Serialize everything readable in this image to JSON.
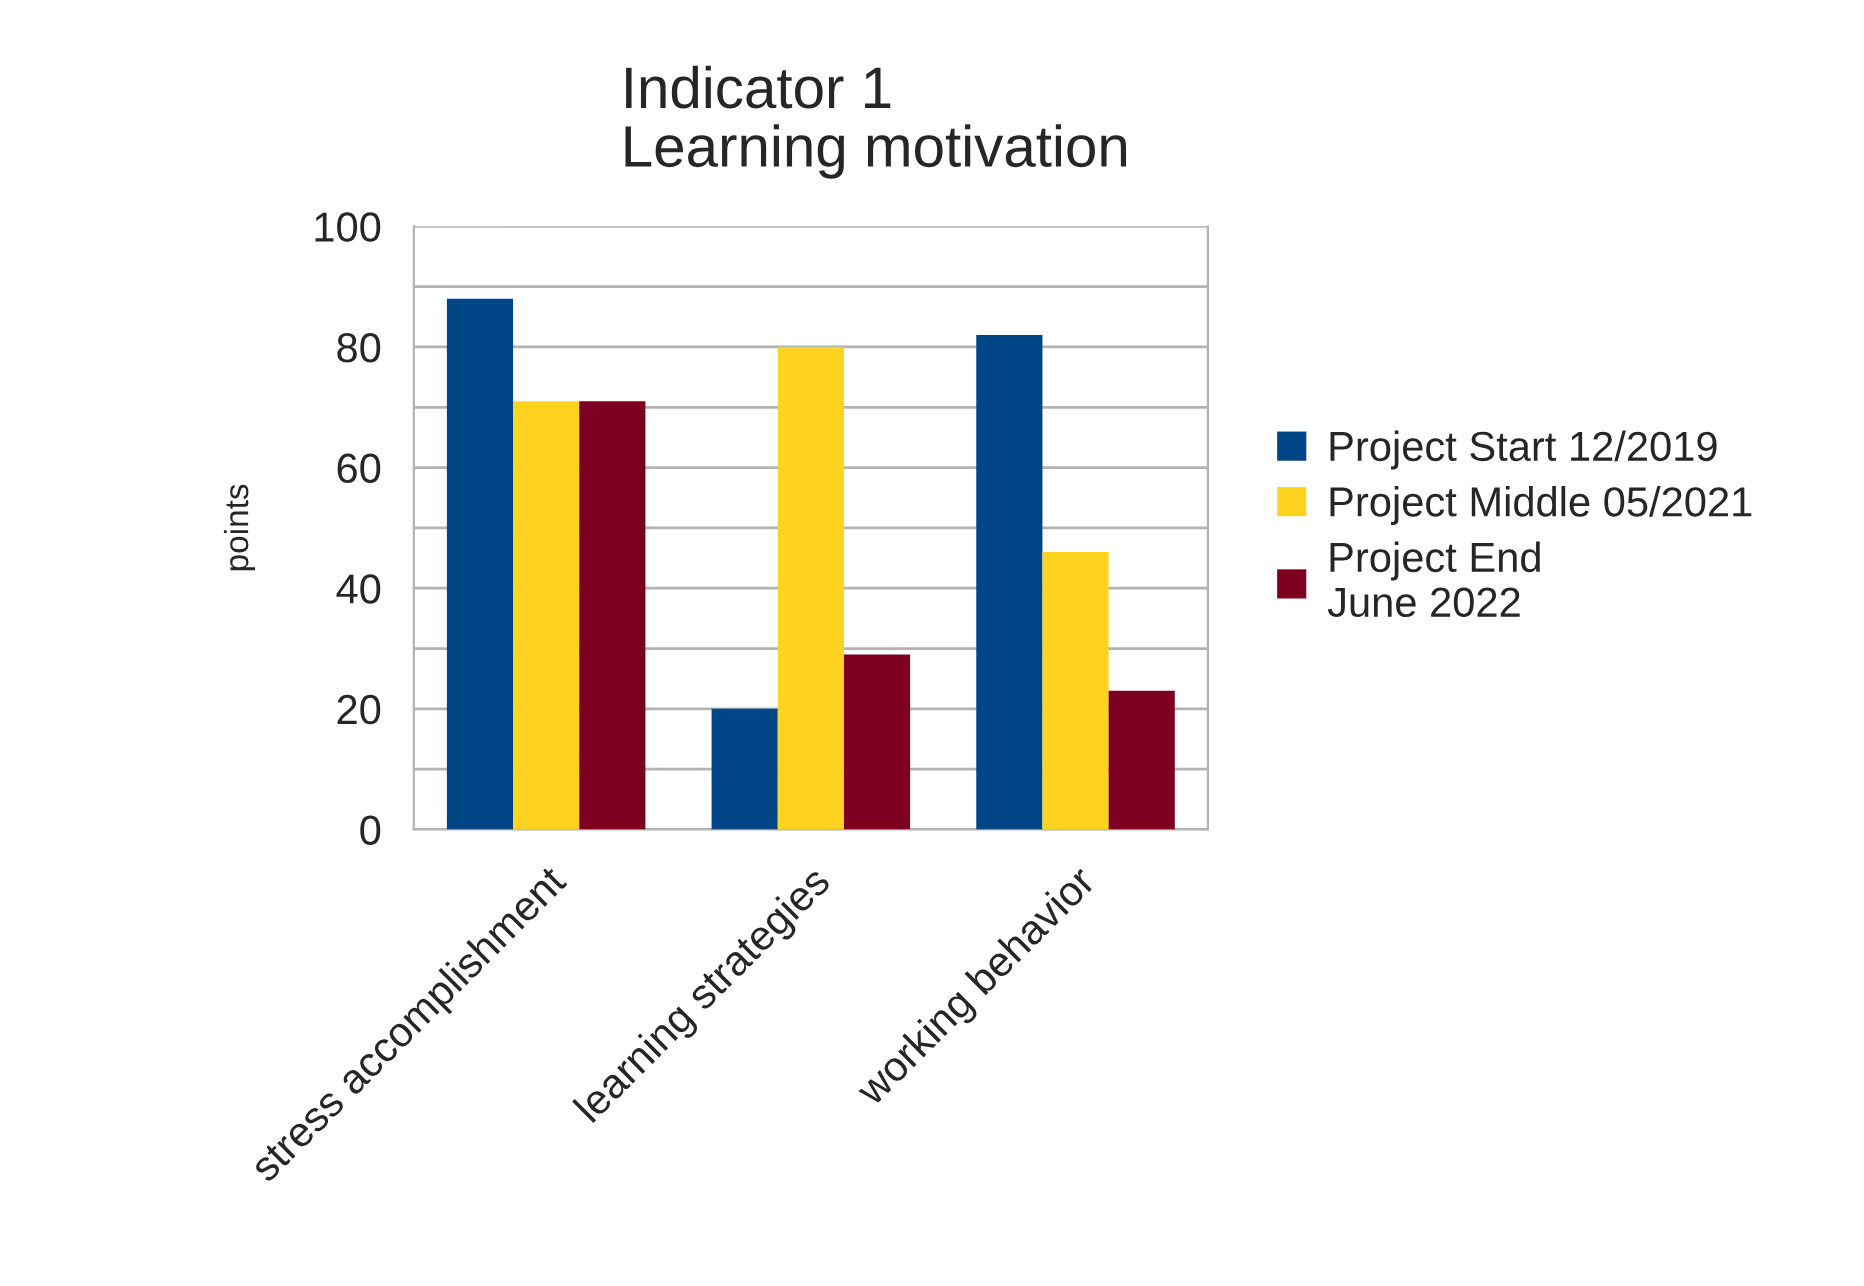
{
  "chart_data": {
    "type": "bar",
    "title": "Indicator 1\nLearning motivation",
    "ylabel": "points",
    "categories": [
      "stress accomplishment",
      "learning strategies",
      "working behavior"
    ],
    "series": [
      {
        "name": "Project Start 12/2019",
        "color": "#004586",
        "values": [
          88,
          20,
          82
        ]
      },
      {
        "name": "Project Middle 05/2021",
        "color": "#ffd320",
        "values": [
          71,
          80,
          46
        ]
      },
      {
        "name": "Project End\nJune 2022",
        "color": "#7e0021",
        "values": [
          71,
          29,
          23
        ]
      }
    ],
    "ylim": [
      0,
      100
    ],
    "yticks": [
      0,
      {
        "value": 10,
        "label": null
      },
      20,
      {
        "value": 30,
        "label": null
      },
      40,
      {
        "value": 50,
        "label": null
      },
      60,
      {
        "value": 70,
        "label": null
      },
      80,
      {
        "value": 90,
        "label": null
      },
      100
    ],
    "grid": "y",
    "legend": "right"
  }
}
